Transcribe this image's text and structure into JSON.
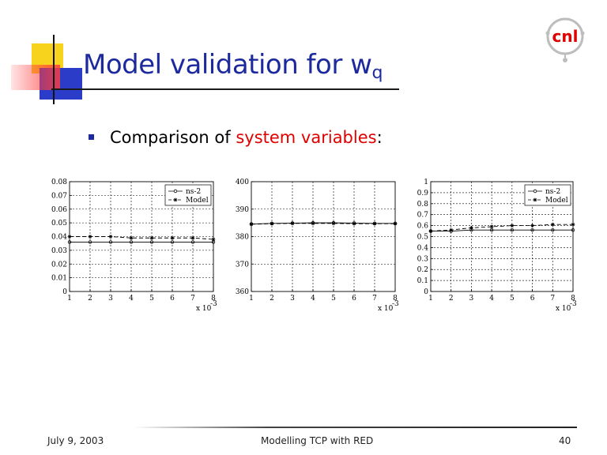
{
  "slide": {
    "title_main": "Model validation for w",
    "title_sub": "q",
    "bullet": {
      "prefix": "Comparison of ",
      "highlight": "system variables",
      "suffix": ":"
    },
    "logo_text": "cnl",
    "colors": {
      "title": "#1c2a9e",
      "highlight": "#e00000",
      "deco_yellow": "#f7d31e",
      "deco_red": "#ff3c3c",
      "deco_blue": "#2a3cc8"
    }
  },
  "footer": {
    "date": "July 9, 2003",
    "center": "Modelling TCP with RED",
    "page": "40"
  },
  "chart_data": [
    {
      "type": "line",
      "x": [
        1,
        2,
        3,
        4,
        5,
        6,
        7,
        8
      ],
      "xlim": [
        1,
        8
      ],
      "ylim": [
        0,
        0.08
      ],
      "yticks": [
        "0",
        "0.01",
        "0.02",
        "0.03",
        "0.04",
        "0.05",
        "0.06",
        "0.07",
        "0.08"
      ],
      "xticks": [
        "1",
        "2",
        "3",
        "4",
        "5",
        "6",
        "7",
        "8"
      ],
      "x_multiplier": "x 10",
      "x_multiplier_exp": "-3",
      "grid": true,
      "legend_position": "top-right",
      "series": [
        {
          "name": "ns-2",
          "marker": "circle",
          "dash": "solid",
          "values": [
            0.036,
            0.036,
            0.036,
            0.036,
            0.036,
            0.036,
            0.036,
            0.036
          ]
        },
        {
          "name": "Model",
          "marker": "star",
          "dash": "dashed",
          "values": [
            0.04,
            0.04,
            0.04,
            0.039,
            0.039,
            0.039,
            0.039,
            0.038
          ]
        }
      ]
    },
    {
      "type": "line",
      "x": [
        1,
        2,
        3,
        4,
        5,
        6,
        7,
        8
      ],
      "xlim": [
        1,
        8
      ],
      "ylim": [
        360,
        400
      ],
      "yticks": [
        "360",
        "370",
        "380",
        "390",
        "400"
      ],
      "xticks": [
        "1",
        "2",
        "3",
        "4",
        "5",
        "6",
        "7",
        "8"
      ],
      "x_multiplier": "x 10",
      "x_multiplier_exp": "-3",
      "grid": true,
      "series": [
        {
          "marker": "circle",
          "dash": "solid",
          "values": [
            384.6,
            384.8,
            384.9,
            385.0,
            385.0,
            384.9,
            384.8,
            384.8
          ]
        },
        {
          "marker": "star",
          "dash": "dashed",
          "values": [
            384.5,
            384.7,
            384.8,
            384.8,
            384.8,
            384.7,
            384.7,
            384.7
          ]
        }
      ]
    },
    {
      "type": "line",
      "x": [
        1,
        2,
        3,
        4,
        5,
        6,
        7,
        8
      ],
      "xlim": [
        1,
        8
      ],
      "ylim": [
        0,
        1
      ],
      "yticks": [
        "0",
        "0.1",
        "0.2",
        "0.3",
        "0.4",
        "0.5",
        "0.6",
        "0.7",
        "0.8",
        "0.9",
        "1"
      ],
      "xticks": [
        "1",
        "2",
        "3",
        "4",
        "5",
        "6",
        "7",
        "8"
      ],
      "x_multiplier": "x 10",
      "x_multiplier_exp": "-3",
      "grid": true,
      "legend_position": "top-right",
      "series": [
        {
          "name": "ns-2",
          "marker": "circle",
          "dash": "solid",
          "values": [
            0.55,
            0.55,
            0.56,
            0.56,
            0.56,
            0.56,
            0.56,
            0.56
          ]
        },
        {
          "name": "Model",
          "marker": "star",
          "dash": "dashed",
          "values": [
            0.55,
            0.56,
            0.58,
            0.59,
            0.6,
            0.6,
            0.61,
            0.61
          ]
        }
      ]
    }
  ]
}
